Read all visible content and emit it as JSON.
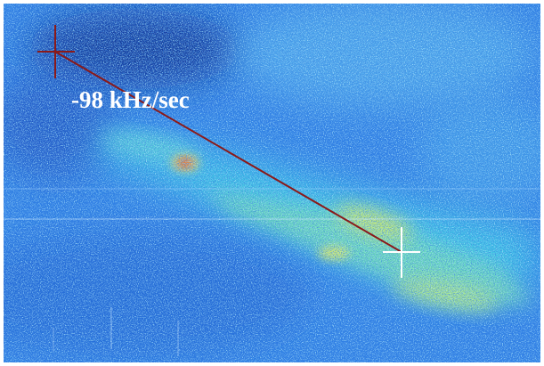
{
  "annotation": "-98 kHz/sec"
}
